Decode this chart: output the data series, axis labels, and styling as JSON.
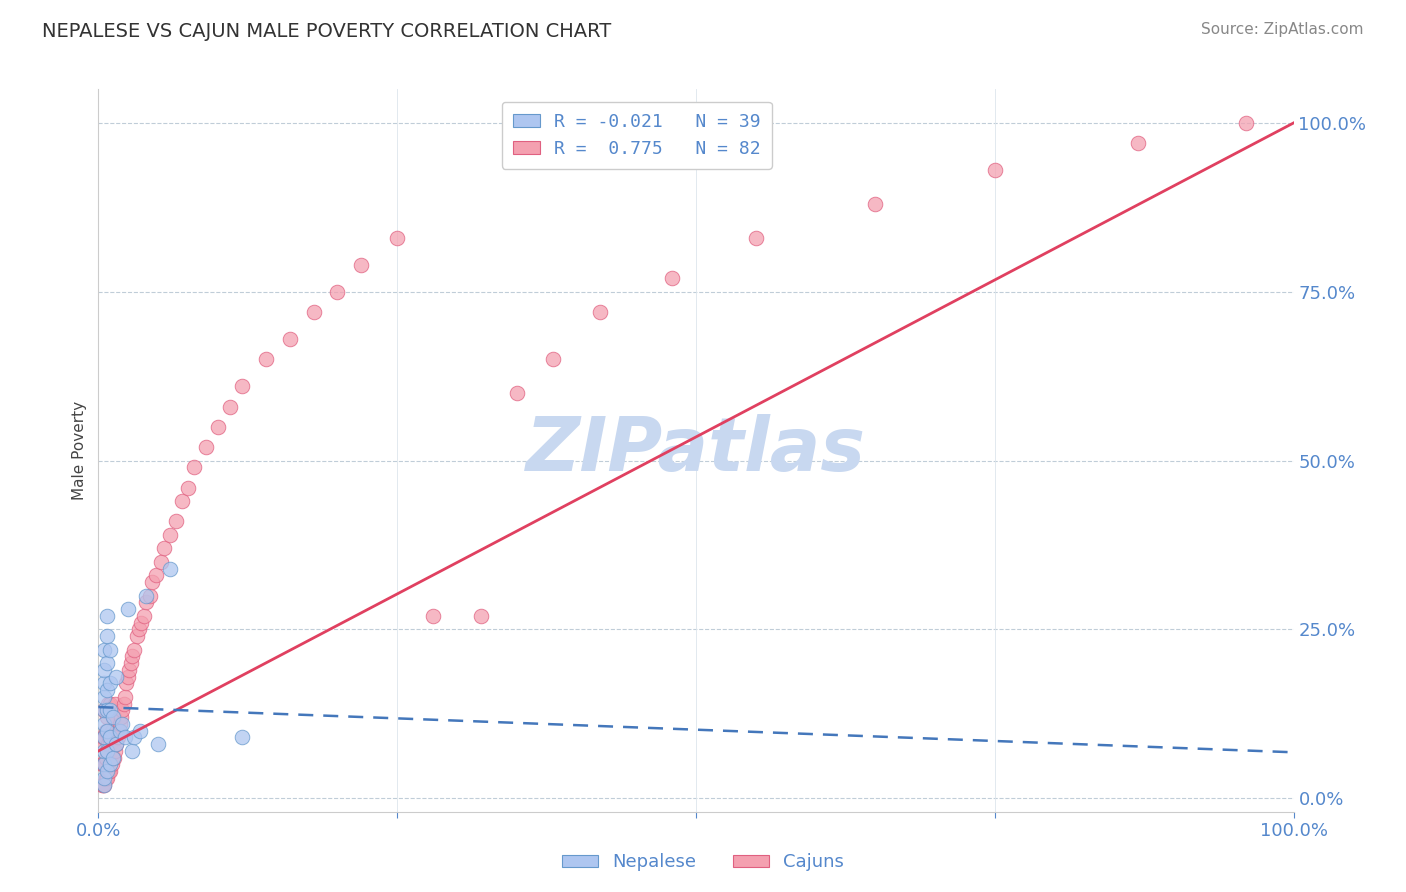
{
  "title": "NEPALESE VS CAJUN MALE POVERTY CORRELATION CHART",
  "source": "Source: ZipAtlas.com",
  "ylabel": "Male Poverty",
  "xlim": [
    0,
    1
  ],
  "ylim": [
    -0.02,
    1.05
  ],
  "x_tick_labels": [
    "0.0%",
    "",
    "",
    "",
    "100.0%"
  ],
  "x_tick_vals": [
    0.0,
    0.25,
    0.5,
    0.75,
    1.0
  ],
  "y_tick_right_labels": [
    "0.0%",
    "25.0%",
    "50.0%",
    "75.0%",
    "100.0%"
  ],
  "y_tick_right_vals": [
    0.0,
    0.25,
    0.5,
    0.75,
    1.0
  ],
  "nepalese_color": "#aec6f0",
  "cajun_color": "#f4a0b0",
  "nepalese_edge": "#6699cc",
  "cajun_edge": "#e06080",
  "trend_blue_color": "#4477bb",
  "trend_pink_color": "#e04060",
  "watermark": "ZIPatlas",
  "watermark_color": "#c8d8f0",
  "legend_label_neo": "R = -0.021   N = 39",
  "legend_label_caj": "R =  0.775   N = 82",
  "cajun_trend_x0": 0.0,
  "cajun_trend_y0": 0.07,
  "cajun_trend_x1": 1.0,
  "cajun_trend_y1": 1.0,
  "neo_trend_x0": 0.0,
  "neo_trend_y0": 0.135,
  "neo_trend_x1": 1.0,
  "neo_trend_y1": 0.068,
  "nepalese_x": [
    0.005,
    0.005,
    0.005,
    0.005,
    0.005,
    0.005,
    0.005,
    0.005,
    0.005,
    0.005,
    0.005,
    0.007,
    0.007,
    0.007,
    0.007,
    0.007,
    0.007,
    0.007,
    0.007,
    0.01,
    0.01,
    0.01,
    0.01,
    0.01,
    0.012,
    0.012,
    0.015,
    0.015,
    0.018,
    0.02,
    0.022,
    0.025,
    0.028,
    0.03,
    0.035,
    0.04,
    0.05,
    0.06,
    0.12
  ],
  "nepalese_y": [
    0.02,
    0.03,
    0.05,
    0.07,
    0.09,
    0.11,
    0.13,
    0.15,
    0.17,
    0.19,
    0.22,
    0.04,
    0.07,
    0.1,
    0.13,
    0.16,
    0.2,
    0.24,
    0.27,
    0.05,
    0.09,
    0.13,
    0.17,
    0.22,
    0.06,
    0.12,
    0.08,
    0.18,
    0.1,
    0.11,
    0.09,
    0.28,
    0.07,
    0.09,
    0.1,
    0.3,
    0.08,
    0.34,
    0.09
  ],
  "cajun_x": [
    0.003,
    0.003,
    0.003,
    0.004,
    0.004,
    0.004,
    0.005,
    0.005,
    0.005,
    0.005,
    0.006,
    0.006,
    0.006,
    0.007,
    0.007,
    0.007,
    0.008,
    0.008,
    0.008,
    0.009,
    0.009,
    0.01,
    0.01,
    0.01,
    0.011,
    0.011,
    0.012,
    0.012,
    0.013,
    0.013,
    0.014,
    0.014,
    0.015,
    0.016,
    0.017,
    0.018,
    0.019,
    0.02,
    0.021,
    0.022,
    0.023,
    0.025,
    0.026,
    0.027,
    0.028,
    0.03,
    0.032,
    0.034,
    0.036,
    0.038,
    0.04,
    0.043,
    0.045,
    0.048,
    0.052,
    0.055,
    0.06,
    0.065,
    0.07,
    0.075,
    0.08,
    0.09,
    0.1,
    0.11,
    0.12,
    0.14,
    0.16,
    0.18,
    0.2,
    0.22,
    0.25,
    0.28,
    0.32,
    0.35,
    0.38,
    0.42,
    0.48,
    0.55,
    0.65,
    0.75,
    0.87,
    0.96
  ],
  "cajun_y": [
    0.02,
    0.05,
    0.08,
    0.02,
    0.05,
    0.09,
    0.02,
    0.05,
    0.09,
    0.13,
    0.03,
    0.06,
    0.1,
    0.03,
    0.07,
    0.12,
    0.04,
    0.08,
    0.14,
    0.04,
    0.09,
    0.04,
    0.08,
    0.14,
    0.05,
    0.1,
    0.06,
    0.12,
    0.06,
    0.12,
    0.07,
    0.14,
    0.08,
    0.09,
    0.1,
    0.11,
    0.12,
    0.13,
    0.14,
    0.15,
    0.17,
    0.18,
    0.19,
    0.2,
    0.21,
    0.22,
    0.24,
    0.25,
    0.26,
    0.27,
    0.29,
    0.3,
    0.32,
    0.33,
    0.35,
    0.37,
    0.39,
    0.41,
    0.44,
    0.46,
    0.49,
    0.52,
    0.55,
    0.58,
    0.61,
    0.65,
    0.68,
    0.72,
    0.75,
    0.79,
    0.83,
    0.27,
    0.27,
    0.6,
    0.65,
    0.72,
    0.77,
    0.83,
    0.88,
    0.93,
    0.97,
    1.0
  ]
}
